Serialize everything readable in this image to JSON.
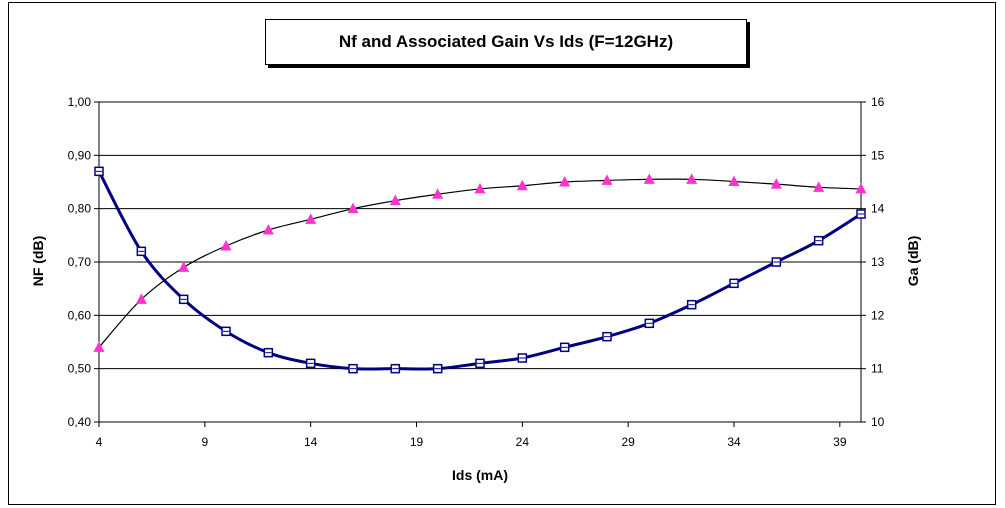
{
  "chart_data": {
    "type": "line",
    "title": "Nf and Associated Gain Vs Ids (F=12GHz)",
    "xlabel": "Ids (mA)",
    "ylabel_left": "NF (dB)",
    "ylabel_right": "Ga (dB)",
    "xlim": [
      4,
      40
    ],
    "x_ticks": [
      4,
      9,
      14,
      19,
      24,
      29,
      34,
      39
    ],
    "ylim_left": [
      0.4,
      1.0
    ],
    "y_ticks_left": [
      "0,40",
      "0,50",
      "0,60",
      "0,70",
      "0,80",
      "0,90",
      "1,00"
    ],
    "ylim_right": [
      10,
      16
    ],
    "y_ticks_right": [
      "10",
      "11",
      "12",
      "13",
      "14",
      "15",
      "16"
    ],
    "grid": "horizontal",
    "legend": "none",
    "series": [
      {
        "axis": "left",
        "color": "#000080",
        "marker": "square",
        "x": [
          4,
          6,
          8,
          10,
          12,
          14,
          16,
          18,
          20,
          22,
          24,
          26,
          28,
          30,
          32,
          34,
          36,
          38,
          40
        ],
        "values": [
          0.87,
          0.72,
          0.63,
          0.57,
          0.53,
          0.51,
          0.5,
          0.5,
          0.5,
          0.51,
          0.52,
          0.54,
          0.56,
          0.585,
          0.62,
          0.66,
          0.7,
          0.74,
          0.79
        ]
      },
      {
        "axis": "right",
        "color": "#000000",
        "marker_color": "#ff33cc",
        "marker": "triangle",
        "x": [
          4,
          6,
          8,
          10,
          12,
          14,
          16,
          18,
          20,
          22,
          24,
          26,
          28,
          30,
          32,
          34,
          36,
          38,
          40
        ],
        "values": [
          11.4,
          12.3,
          12.9,
          13.3,
          13.6,
          13.8,
          14.0,
          14.15,
          14.27,
          14.37,
          14.43,
          14.5,
          14.53,
          14.55,
          14.55,
          14.51,
          14.46,
          14.4,
          14.37
        ]
      }
    ]
  }
}
